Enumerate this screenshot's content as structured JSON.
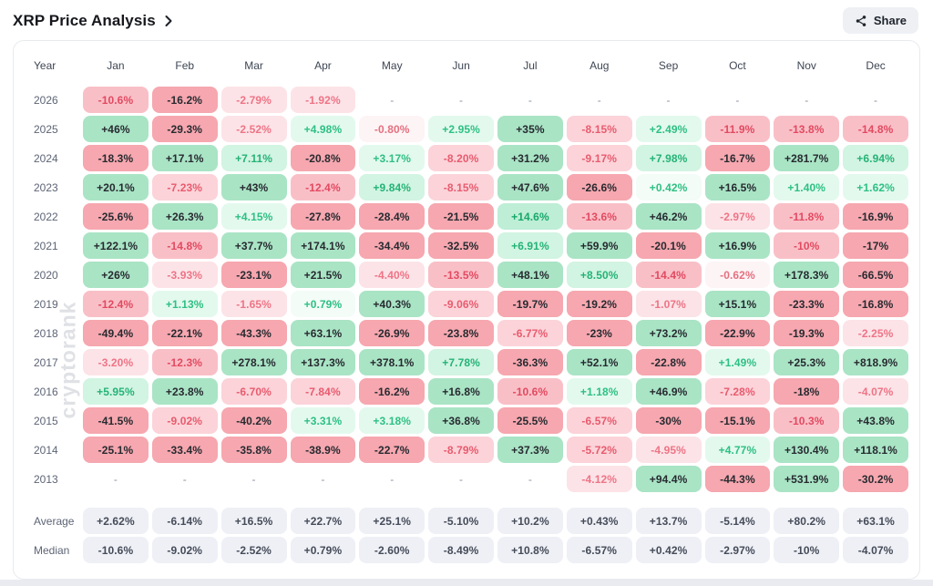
{
  "header": {
    "title": "XRP Price Analysis",
    "share_label": "Share"
  },
  "watermark": "cryptorank",
  "colors": {
    "positive_strong": "#a9e4c5",
    "negative_strong": "#f6a7af",
    "positive_text": "#2ec083",
    "negative_text": "#ee7486",
    "summary_pill": "#eef0f6",
    "card_border": "#e8eaee"
  },
  "chart_data": {
    "type": "heatmap",
    "title": "XRP Price Analysis — monthly price change (%)",
    "legend_note": "green = positive monthly return, red = negative; tint intensity scales with magnitude",
    "columns": [
      "Year",
      "Jan",
      "Feb",
      "Mar",
      "Apr",
      "May",
      "Jun",
      "Jul",
      "Aug",
      "Sep",
      "Oct",
      "Nov",
      "Dec"
    ],
    "rows": [
      {
        "year": "2026",
        "values": [
          "-10.6%",
          "-16.2%",
          "-2.79%",
          "-1.92%",
          "-",
          "-",
          "-",
          "-",
          "-",
          "-",
          "-",
          "-"
        ]
      },
      {
        "year": "2025",
        "values": [
          "+46%",
          "-29.3%",
          "-2.52%",
          "+4.98%",
          "-0.80%",
          "+2.95%",
          "+35%",
          "-8.15%",
          "+2.49%",
          "-11.9%",
          "-13.8%",
          "-14.8%"
        ]
      },
      {
        "year": "2024",
        "values": [
          "-18.3%",
          "+17.1%",
          "+7.11%",
          "-20.8%",
          "+3.17%",
          "-8.20%",
          "+31.2%",
          "-9.17%",
          "+7.98%",
          "-16.7%",
          "+281.7%",
          "+6.94%"
        ]
      },
      {
        "year": "2023",
        "values": [
          "+20.1%",
          "-7.23%",
          "+43%",
          "-12.4%",
          "+9.84%",
          "-8.15%",
          "+47.6%",
          "-26.6%",
          "+0.42%",
          "+16.5%",
          "+1.40%",
          "+1.62%"
        ]
      },
      {
        "year": "2022",
        "values": [
          "-25.6%",
          "+26.3%",
          "+4.15%",
          "-27.8%",
          "-28.4%",
          "-21.5%",
          "+14.6%",
          "-13.6%",
          "+46.2%",
          "-2.97%",
          "-11.8%",
          "-16.9%"
        ]
      },
      {
        "year": "2021",
        "values": [
          "+122.1%",
          "-14.8%",
          "+37.7%",
          "+174.1%",
          "-34.4%",
          "-32.5%",
          "+6.91%",
          "+59.9%",
          "-20.1%",
          "+16.9%",
          "-10%",
          "-17%"
        ]
      },
      {
        "year": "2020",
        "values": [
          "+26%",
          "-3.93%",
          "-23.1%",
          "+21.5%",
          "-4.40%",
          "-13.5%",
          "+48.1%",
          "+8.50%",
          "-14.4%",
          "-0.62%",
          "+178.3%",
          "-66.5%"
        ]
      },
      {
        "year": "2019",
        "values": [
          "-12.4%",
          "+1.13%",
          "-1.65%",
          "+0.79%",
          "+40.3%",
          "-9.06%",
          "-19.7%",
          "-19.2%",
          "-1.07%",
          "+15.1%",
          "-23.3%",
          "-16.8%"
        ]
      },
      {
        "year": "2018",
        "values": [
          "-49.4%",
          "-22.1%",
          "-43.3%",
          "+63.1%",
          "-26.9%",
          "-23.8%",
          "-6.77%",
          "-23%",
          "+73.2%",
          "-22.9%",
          "-19.3%",
          "-2.25%"
        ]
      },
      {
        "year": "2017",
        "values": [
          "-3.20%",
          "-12.3%",
          "+278.1%",
          "+137.3%",
          "+378.1%",
          "+7.78%",
          "-36.3%",
          "+52.1%",
          "-22.8%",
          "+1.49%",
          "+25.3%",
          "+818.9%"
        ]
      },
      {
        "year": "2016",
        "values": [
          "+5.95%",
          "+23.8%",
          "-6.70%",
          "-7.84%",
          "-16.2%",
          "+16.8%",
          "-10.6%",
          "+1.18%",
          "+46.9%",
          "-7.28%",
          "-18%",
          "-4.07%"
        ]
      },
      {
        "year": "2015",
        "values": [
          "-41.5%",
          "-9.02%",
          "-40.2%",
          "+3.31%",
          "+3.18%",
          "+36.8%",
          "-25.5%",
          "-6.57%",
          "-30%",
          "-15.1%",
          "-10.3%",
          "+43.8%"
        ]
      },
      {
        "year": "2014",
        "values": [
          "-25.1%",
          "-33.4%",
          "-35.8%",
          "-38.9%",
          "-22.7%",
          "-8.79%",
          "+37.3%",
          "-5.72%",
          "-4.95%",
          "+4.77%",
          "+130.4%",
          "+118.1%"
        ]
      },
      {
        "year": "2013",
        "values": [
          "-",
          "-",
          "-",
          "-",
          "-",
          "-",
          "-",
          "-4.12%",
          "+94.4%",
          "-44.3%",
          "+531.9%",
          "-30.2%"
        ]
      }
    ],
    "summary_rows": [
      {
        "label": "Average",
        "values": [
          "+2.62%",
          "-6.14%",
          "+16.5%",
          "+22.7%",
          "+25.1%",
          "-5.10%",
          "+10.2%",
          "+0.43%",
          "+13.7%",
          "-5.14%",
          "+80.2%",
          "+63.1%"
        ]
      },
      {
        "label": "Median",
        "values": [
          "-10.6%",
          "-9.02%",
          "-2.52%",
          "+0.79%",
          "-2.60%",
          "-8.49%",
          "+10.8%",
          "-6.57%",
          "+0.42%",
          "-2.97%",
          "-10%",
          "-4.07%"
        ]
      }
    ]
  }
}
